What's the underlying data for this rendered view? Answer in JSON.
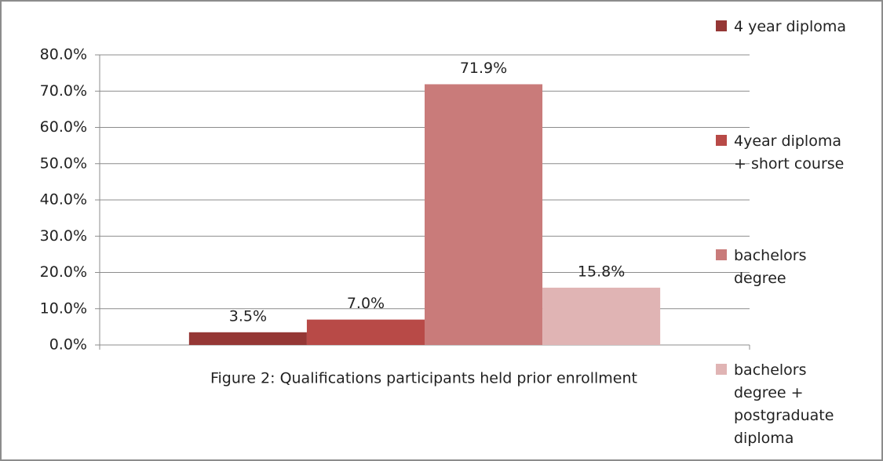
{
  "chart_data": {
    "type": "bar",
    "caption": "Figure 2: Qualifications participants held prior enrollment",
    "categories": [
      null
    ],
    "series": [
      {
        "name": "4 year diploma",
        "color": "#953735",
        "values": [
          3.5
        ],
        "value_labels": [
          "3.5%"
        ]
      },
      {
        "name": "4year diploma + short course",
        "color": "#b84a47",
        "values": [
          7.0
        ],
        "value_labels": [
          "7.0%"
        ]
      },
      {
        "name": "bachelors degree",
        "color": "#c97b7a",
        "values": [
          71.9
        ],
        "value_labels": [
          "71.9%"
        ]
      },
      {
        "name": "bachelors degree + postgraduate diploma",
        "color": "#e0b4b4",
        "values": [
          15.8
        ],
        "value_labels": [
          "15.8%"
        ]
      }
    ],
    "ylim": [
      0,
      80
    ],
    "yticks": [
      {
        "value": 0,
        "label": "0.0%"
      },
      {
        "value": 10,
        "label": "10.0%"
      },
      {
        "value": 20,
        "label": "20.0%"
      },
      {
        "value": 30,
        "label": "30.0%"
      },
      {
        "value": 40,
        "label": "40.0%"
      },
      {
        "value": 50,
        "label": "50.0%"
      },
      {
        "value": 60,
        "label": "60.0%"
      },
      {
        "value": 70,
        "label": "70.0%"
      },
      {
        "value": 80,
        "label": "80.0%"
      }
    ],
    "grid": true,
    "legend": "right"
  }
}
